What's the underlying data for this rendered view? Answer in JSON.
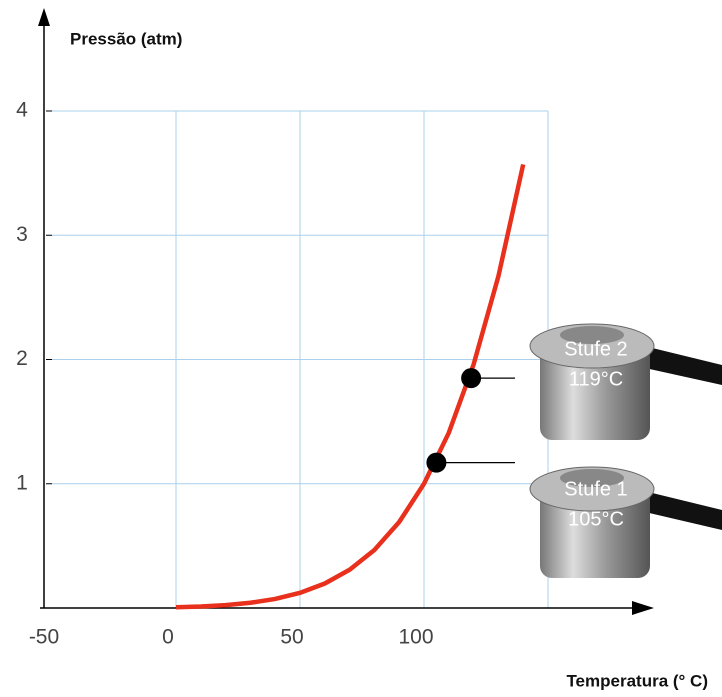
{
  "chart_data": {
    "type": "line",
    "y_label": "Pressão (atm)",
    "x_label": "Temperatura (° C)",
    "x": [
      0,
      10,
      20,
      30,
      40,
      50,
      60,
      70,
      80,
      90,
      100,
      110,
      120,
      130,
      140
    ],
    "series": [
      {
        "color": "#e8301c",
        "values": [
          0.006,
          0.012,
          0.023,
          0.042,
          0.073,
          0.122,
          0.197,
          0.308,
          0.467,
          0.692,
          1.0,
          1.41,
          1.96,
          2.67,
          3.57
        ]
      }
    ],
    "xlim": [
      -50,
      150
    ],
    "ylim": [
      0,
      4
    ],
    "xticks": [
      -50,
      0,
      50,
      100
    ],
    "yticks": [
      1,
      2,
      3,
      4
    ],
    "grid": true,
    "markers": [
      {
        "x": 105,
        "y": 1.17,
        "name": "Stufe 1",
        "label": "105°C"
      },
      {
        "x": 119,
        "y": 1.85,
        "name": "Stufe 2",
        "label": "119°C"
      }
    ]
  }
}
